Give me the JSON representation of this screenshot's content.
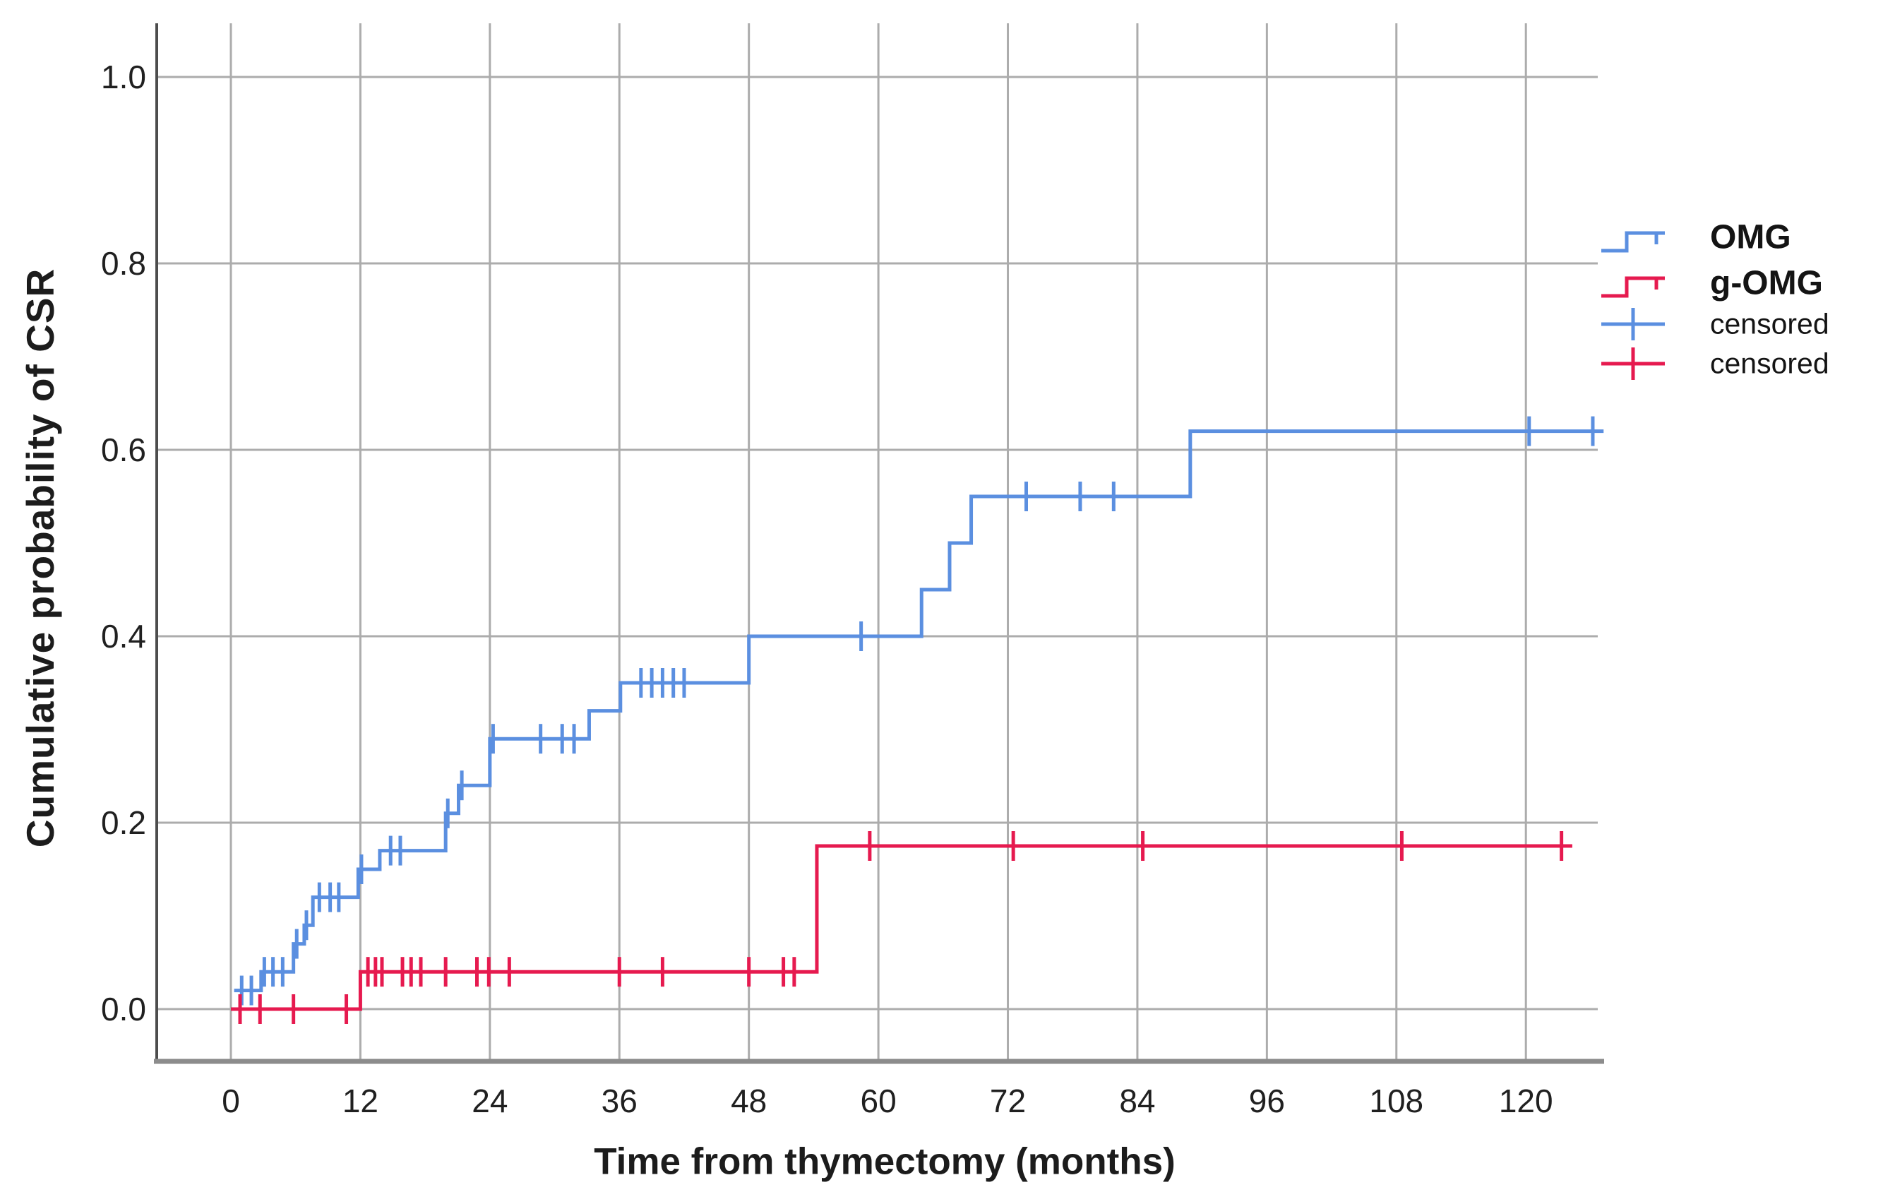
{
  "chart_data": {
    "type": "line",
    "subtype": "kaplan-meier-step",
    "title": "",
    "xlabel": "Time from thymectomy (months)",
    "ylabel": "Cumulative probability of CSR",
    "x_ticks": [
      0,
      12,
      24,
      36,
      48,
      60,
      72,
      84,
      96,
      108,
      120
    ],
    "y_ticks": [
      "0.0",
      "0.2",
      "0.4",
      "0.6",
      "0.8",
      "1.0"
    ],
    "xlim": [
      -7,
      128.5
    ],
    "ylim": [
      -0.06,
      1.06
    ],
    "grid": true,
    "legend_position": "right",
    "colors": {
      "grid": "#ACACAC",
      "axis_y": "#4D4D4D",
      "axis_x": "#8C8C8C",
      "text": "#1C1C1C",
      "blue": "#5B8FE0",
      "red": "#E61A4F"
    },
    "series": [
      {
        "name": "OMG",
        "color": "#5B8FE0",
        "start": [
          0.3,
          0.02
        ],
        "steps": [
          [
            2.8,
            0.04
          ],
          [
            5.8,
            0.07
          ],
          [
            6.8,
            0.09
          ],
          [
            7.6,
            0.12
          ],
          [
            11.8,
            0.15
          ],
          [
            13.8,
            0.17
          ],
          [
            19.9,
            0.21
          ],
          [
            21.1,
            0.24
          ],
          [
            24.0,
            0.29
          ],
          [
            33.2,
            0.32
          ],
          [
            36.1,
            0.35
          ],
          [
            48.0,
            0.4
          ],
          [
            64.0,
            0.45
          ],
          [
            66.6,
            0.5
          ],
          [
            68.6,
            0.55
          ],
          [
            88.9,
            0.62
          ]
        ],
        "end": 127.2,
        "censored": [
          [
            1.0,
            0.02
          ],
          [
            1.9,
            0.02
          ],
          [
            3.1,
            0.04
          ],
          [
            3.9,
            0.04
          ],
          [
            4.8,
            0.04
          ],
          [
            6.1,
            0.07
          ],
          [
            7.0,
            0.09
          ],
          [
            8.2,
            0.12
          ],
          [
            9.2,
            0.12
          ],
          [
            10.0,
            0.12
          ],
          [
            12.1,
            0.15
          ],
          [
            14.8,
            0.17
          ],
          [
            15.7,
            0.17
          ],
          [
            20.1,
            0.21
          ],
          [
            21.4,
            0.24
          ],
          [
            24.3,
            0.29
          ],
          [
            28.7,
            0.29
          ],
          [
            30.7,
            0.29
          ],
          [
            31.8,
            0.29
          ],
          [
            38.0,
            0.35
          ],
          [
            39.0,
            0.35
          ],
          [
            40.0,
            0.35
          ],
          [
            41.0,
            0.35
          ],
          [
            42.0,
            0.35
          ],
          [
            58.4,
            0.4
          ],
          [
            73.7,
            0.55
          ],
          [
            78.7,
            0.55
          ],
          [
            81.8,
            0.55
          ],
          [
            120.3,
            0.62
          ],
          [
            126.2,
            0.62
          ]
        ]
      },
      {
        "name": "g-OMG",
        "color": "#E61A4F",
        "start": [
          0.0,
          0.0
        ],
        "steps": [
          [
            12.0,
            0.04
          ],
          [
            54.3,
            0.175
          ]
        ],
        "end": 124.3,
        "censored": [
          [
            0.85,
            0.0
          ],
          [
            2.7,
            0.0
          ],
          [
            5.8,
            0.0
          ],
          [
            10.7,
            0.0
          ],
          [
            12.7,
            0.04
          ],
          [
            13.4,
            0.04
          ],
          [
            14.0,
            0.04
          ],
          [
            15.9,
            0.04
          ],
          [
            16.7,
            0.04
          ],
          [
            17.6,
            0.04
          ],
          [
            19.9,
            0.04
          ],
          [
            22.8,
            0.04
          ],
          [
            23.9,
            0.04
          ],
          [
            25.8,
            0.04
          ],
          [
            36.0,
            0.04
          ],
          [
            40.0,
            0.04
          ],
          [
            48.0,
            0.04
          ],
          [
            51.2,
            0.04
          ],
          [
            52.2,
            0.04
          ],
          [
            59.2,
            0.175
          ],
          [
            72.5,
            0.175
          ],
          [
            84.5,
            0.175
          ],
          [
            108.5,
            0.175
          ],
          [
            123.3,
            0.175
          ]
        ]
      }
    ],
    "legend": [
      {
        "label": "OMG",
        "bold": true,
        "color": "#5B8FE0",
        "glyph": "step"
      },
      {
        "label": "g-OMG",
        "bold": true,
        "color": "#E61A4F",
        "glyph": "step"
      },
      {
        "label": "censored",
        "bold": false,
        "color": "#5B8FE0",
        "glyph": "plus"
      },
      {
        "label": "censored",
        "bold": false,
        "color": "#E61A4F",
        "glyph": "plus"
      }
    ]
  }
}
